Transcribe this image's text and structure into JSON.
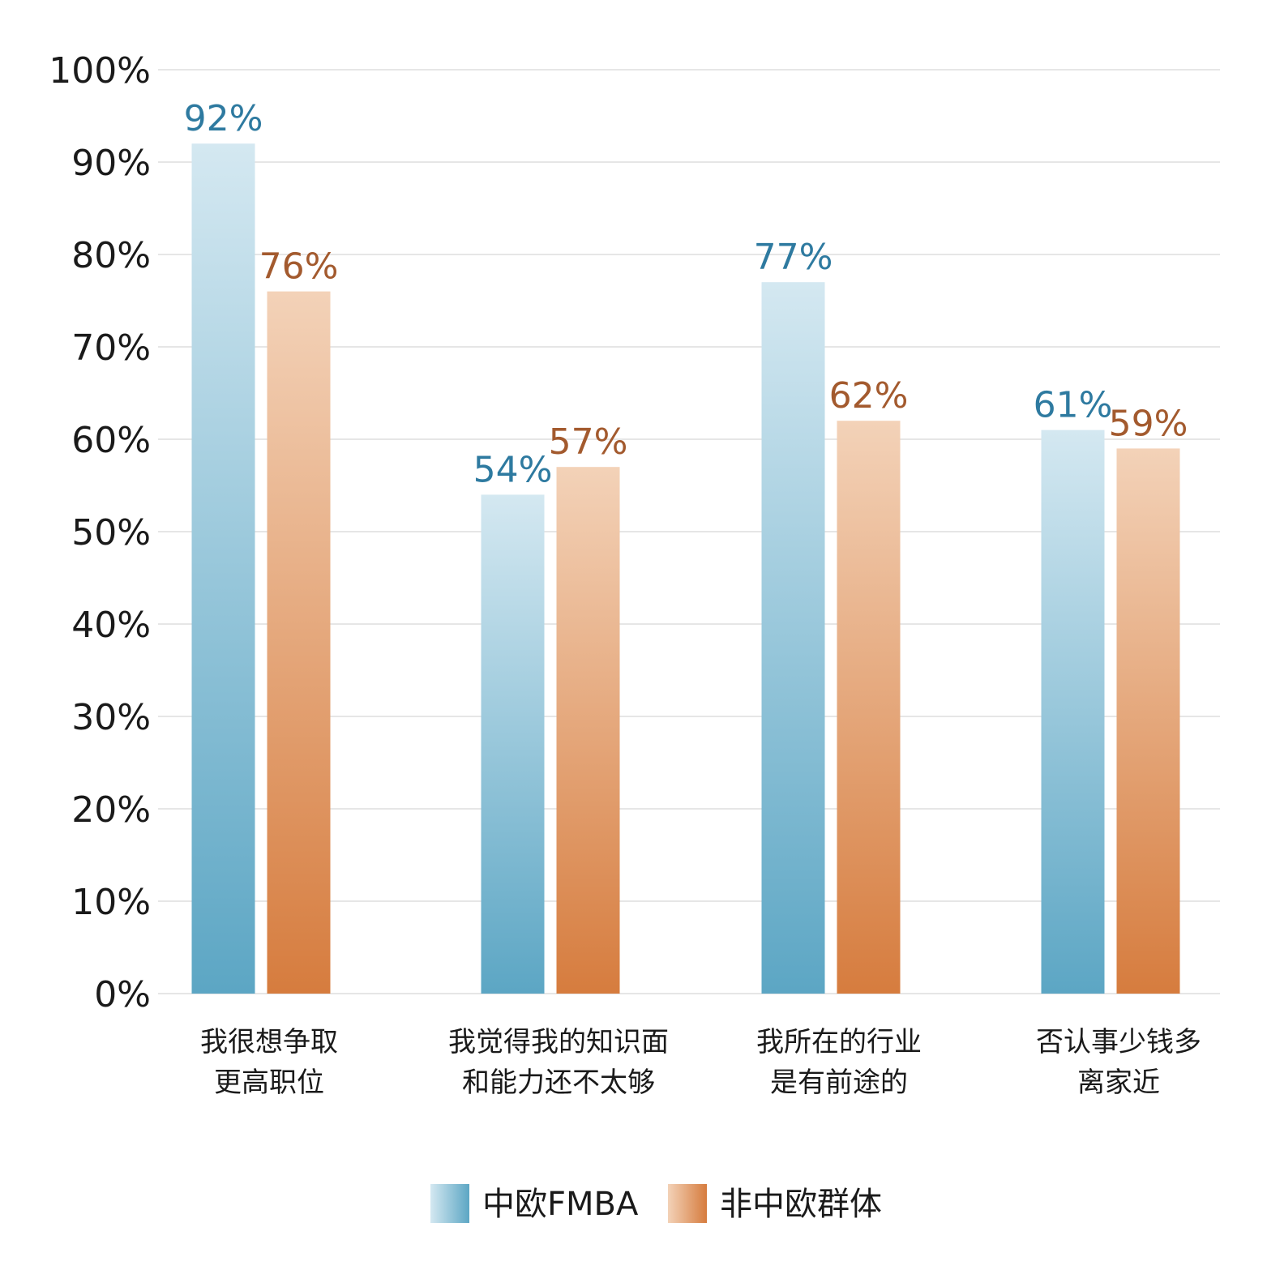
{
  "chart_data": {
    "type": "bar",
    "categories": [
      [
        "我很想争取",
        "更高职位"
      ],
      [
        "我觉得我的知识面",
        "和能力还不太够"
      ],
      [
        "我所在的行业",
        "是有前途的"
      ],
      [
        "否认事少钱多",
        "离家近"
      ]
    ],
    "series": [
      {
        "name": "中欧FMBA",
        "values": [
          92,
          54,
          77,
          61
        ],
        "labels": [
          "92%",
          "54%",
          "77%",
          "61%"
        ],
        "color_top": "#d4e8f1",
        "color_bottom": "#5ca6c4",
        "label_color": "#2e7aa0"
      },
      {
        "name": "非中欧群体",
        "values": [
          76,
          57,
          62,
          59
        ],
        "labels": [
          "76%",
          "57%",
          "62%",
          "59%"
        ],
        "color_top": "#f3d2b8",
        "color_bottom": "#d67c3e",
        "label_color": "#a35a2e"
      }
    ],
    "ylim": [
      0,
      100
    ],
    "yticks": [
      "0%",
      "10%",
      "20%",
      "30%",
      "40%",
      "50%",
      "60%",
      "70%",
      "80%",
      "90%",
      "100%"
    ],
    "grid": true,
    "legend_position": "bottom-center",
    "title": "",
    "xlabel": "",
    "ylabel": ""
  }
}
